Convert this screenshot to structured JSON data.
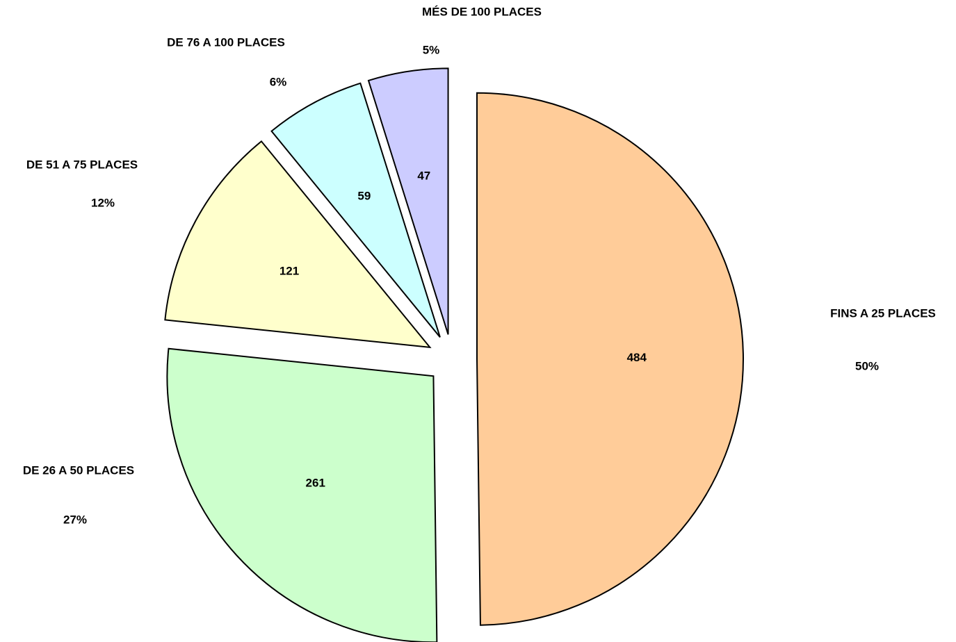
{
  "chart_data": {
    "type": "pie",
    "categories": [
      "FINS A 25 PLACES",
      "DE 26 A 50 PLACES",
      "DE 51 A 75 PLACES",
      "DE 76 A 100 PLACES",
      "MÉS DE 100 PLACES"
    ],
    "values": [
      484,
      261,
      121,
      59,
      47
    ],
    "percent_labels": [
      "50%",
      "27%",
      "12%",
      "6%",
      "5%"
    ],
    "colors": [
      "#ffcc99",
      "#ccffcc",
      "#ffffcc",
      "#ccffff",
      "#ccccff"
    ]
  }
}
